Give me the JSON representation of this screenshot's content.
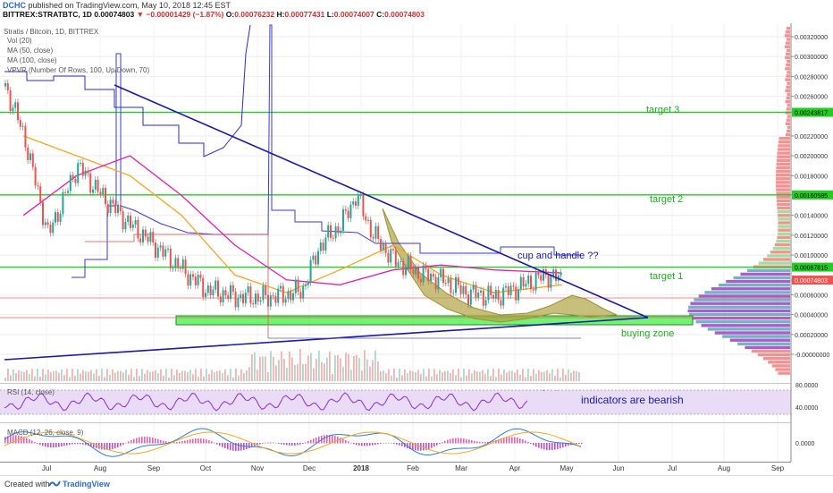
{
  "header": {
    "author": "DCHC",
    "published_text": "published on TradingView.com, May 10, 2018 12:45 EST",
    "symbol": "BITTREX:STRATBTC, 1D",
    "last_price": "0.00074803",
    "change_text": "▼ −0.00001429 (−1.87%)",
    "ohlc": {
      "o": "0.00076232",
      "h": "0.00077431",
      "l": "0.00074007",
      "c": "0.00074803"
    },
    "series_title": "Stratis / Bitcoin, 1D, BITTREX",
    "indicator_labels": [
      "Vol (20)",
      "MA (50, close)",
      "MA (100, close)",
      "VPVR (Number Of Rows, 100, Up/Down, 70)"
    ]
  },
  "footer": {
    "created_with": "Created with",
    "brand": "TradingView"
  },
  "colors": {
    "up": "#26a69a",
    "down": "#ef5350",
    "ma_orange": "#f5a623",
    "ma_magenta": "#e020b0",
    "target_line": "#22cc22",
    "trendline": "#1a1aa8",
    "cup_fill": "#b7ac55",
    "vpvr_purple": "#9e3ec2",
    "vpvr_teal": "#5aa6b8",
    "vpvr_green": "#8ed88e",
    "vpvr_red": "#ef8080",
    "rsi_line": "#8b2be2",
    "rsi_band": "#e8d8f5",
    "macd_hist_pos": "#ef5fb0",
    "macd_line": "#2a7ed8",
    "signal_line": "#f5a623"
  },
  "chart_data": {
    "type": "line",
    "title": "Stratis / Bitcoin, 1D, BITTREX",
    "y_scale": "linear",
    "ylim": [
      -0.0,
      0.0033
    ],
    "y_ticks": [
      "0.00320000",
      "0.00300000",
      "0.00280000",
      "0.00260000",
      "0.00243817",
      "0.00220000",
      "0.00200000",
      "0.00180000",
      "0.00160585",
      "0.00140000",
      "0.00120000",
      "0.00100000",
      "0.00087815",
      "0.00074803",
      "0.00060000",
      "0.00040000",
      "0.00020000",
      "-0.00000000"
    ],
    "highlighted_ticks": {
      "0.00243817": "target3",
      "0.00160585": "target2",
      "0.00087815": "target1",
      "0.00074803": "last"
    },
    "x_ticks": [
      "Jul",
      "Aug",
      "Sep",
      "Oct",
      "Nov",
      "Dec",
      "2018",
      "Feb",
      "Mar",
      "Apr",
      "May",
      "Jun",
      "Jul",
      "Aug",
      "Sep"
    ],
    "grid": true,
    "price_series": {
      "name": "STRATBTC close",
      "x": [
        "2017-06-20",
        "2017-07-01",
        "2017-07-15",
        "2017-08-01",
        "2017-08-15",
        "2017-09-01",
        "2017-09-15",
        "2017-10-01",
        "2017-10-15",
        "2017-11-01",
        "2017-11-15",
        "2017-12-01",
        "2017-12-10",
        "2017-12-20",
        "2018-01-01",
        "2018-01-10",
        "2018-01-20",
        "2018-02-01",
        "2018-02-15",
        "2018-03-01",
        "2018-03-15",
        "2018-04-01",
        "2018-04-15",
        "2018-05-01",
        "2018-05-10"
      ],
      "values": [
        0.0027,
        0.0022,
        0.0012,
        0.0019,
        0.0016,
        0.0013,
        0.0011,
        0.00085,
        0.00065,
        0.00058,
        0.00057,
        0.0006,
        0.00065,
        0.0011,
        0.0013,
        0.0016,
        0.0012,
        0.00095,
        0.00082,
        0.00075,
        0.00062,
        0.00058,
        0.00068,
        0.0008,
        0.00075
      ]
    },
    "ma50": {
      "name": "MA (50, close)",
      "x": [
        "2017-07-01",
        "2017-08-01",
        "2017-09-01",
        "2017-10-01",
        "2017-11-01",
        "2017-12-01",
        "2018-01-01",
        "2018-02-01",
        "2018-03-01",
        "2018-04-01",
        "2018-05-10"
      ],
      "values": [
        0.0022,
        0.002,
        0.0018,
        0.0014,
        0.0008,
        0.00062,
        0.00085,
        0.0011,
        0.0008,
        0.00062,
        0.0007
      ]
    },
    "ma100": {
      "name": "MA (100, close)",
      "x": [
        "2017-07-01",
        "2017-08-01",
        "2017-09-01",
        "2017-10-01",
        "2017-11-01",
        "2017-12-01",
        "2018-01-01",
        "2018-02-01",
        "2018-03-01",
        "2018-04-01",
        "2018-05-10"
      ],
      "values": [
        0.0014,
        0.0018,
        0.002,
        0.0016,
        0.0011,
        0.00075,
        0.0007,
        0.00085,
        0.0009,
        0.00085,
        0.00082
      ]
    },
    "levels": [
      {
        "name": "target 3",
        "value": 0.00243817
      },
      {
        "name": "target 2",
        "value": 0.00160585
      },
      {
        "name": "target 1",
        "value": 0.00087815
      }
    ],
    "buying_zone": {
      "label": "buying zone",
      "from": 0.00056,
      "to": 0.00066
    },
    "annotations": [
      "target 3",
      "target 2",
      "target 1",
      "cup and handle ??",
      "buying zone",
      "indicators are bearish"
    ],
    "rsi": {
      "label": "RSI (14, close)",
      "ticks": [
        "80.0000",
        "40.0000"
      ]
    },
    "macd": {
      "label": "MACD (12, 26, close, 9)",
      "ticks": [
        "0.0000"
      ]
    }
  }
}
